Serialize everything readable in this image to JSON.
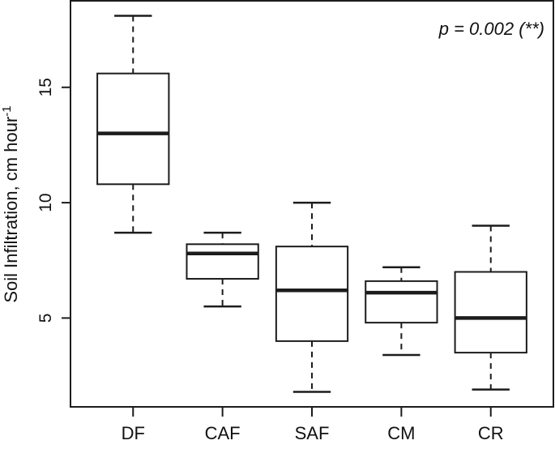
{
  "chart_data": {
    "type": "box",
    "title": "",
    "xlabel": "",
    "ylabel": "Soil Infiltration, cm hour",
    "ylabel_superscript": "-1",
    "annotation": "p = 0.002 (**)",
    "categories": [
      "DF",
      "CAF",
      "SAF",
      "CM",
      "CR"
    ],
    "series": [
      {
        "name": "DF",
        "whisker_low": 8.7,
        "q1": 10.8,
        "median": 13.0,
        "q3": 15.6,
        "whisker_high": 18.1
      },
      {
        "name": "CAF",
        "whisker_low": 5.5,
        "q1": 6.7,
        "median": 7.8,
        "q3": 8.2,
        "whisker_high": 8.7
      },
      {
        "name": "SAF",
        "whisker_low": 1.8,
        "q1": 4.0,
        "median": 6.2,
        "q3": 8.1,
        "whisker_high": 10.0
      },
      {
        "name": "CM",
        "whisker_low": 3.4,
        "q1": 4.8,
        "median": 6.1,
        "q3": 6.6,
        "whisker_high": 7.2
      },
      {
        "name": "CR",
        "whisker_low": 1.9,
        "q1": 3.5,
        "median": 5.0,
        "q3": 7.0,
        "whisker_high": 9.0
      }
    ],
    "yticks": [
      5,
      10,
      15
    ],
    "ylim": [
      1.15,
      18.75
    ],
    "grid": false,
    "legend": "none",
    "box_fill": "#ffffff",
    "line_color": "#1c1c1c"
  }
}
